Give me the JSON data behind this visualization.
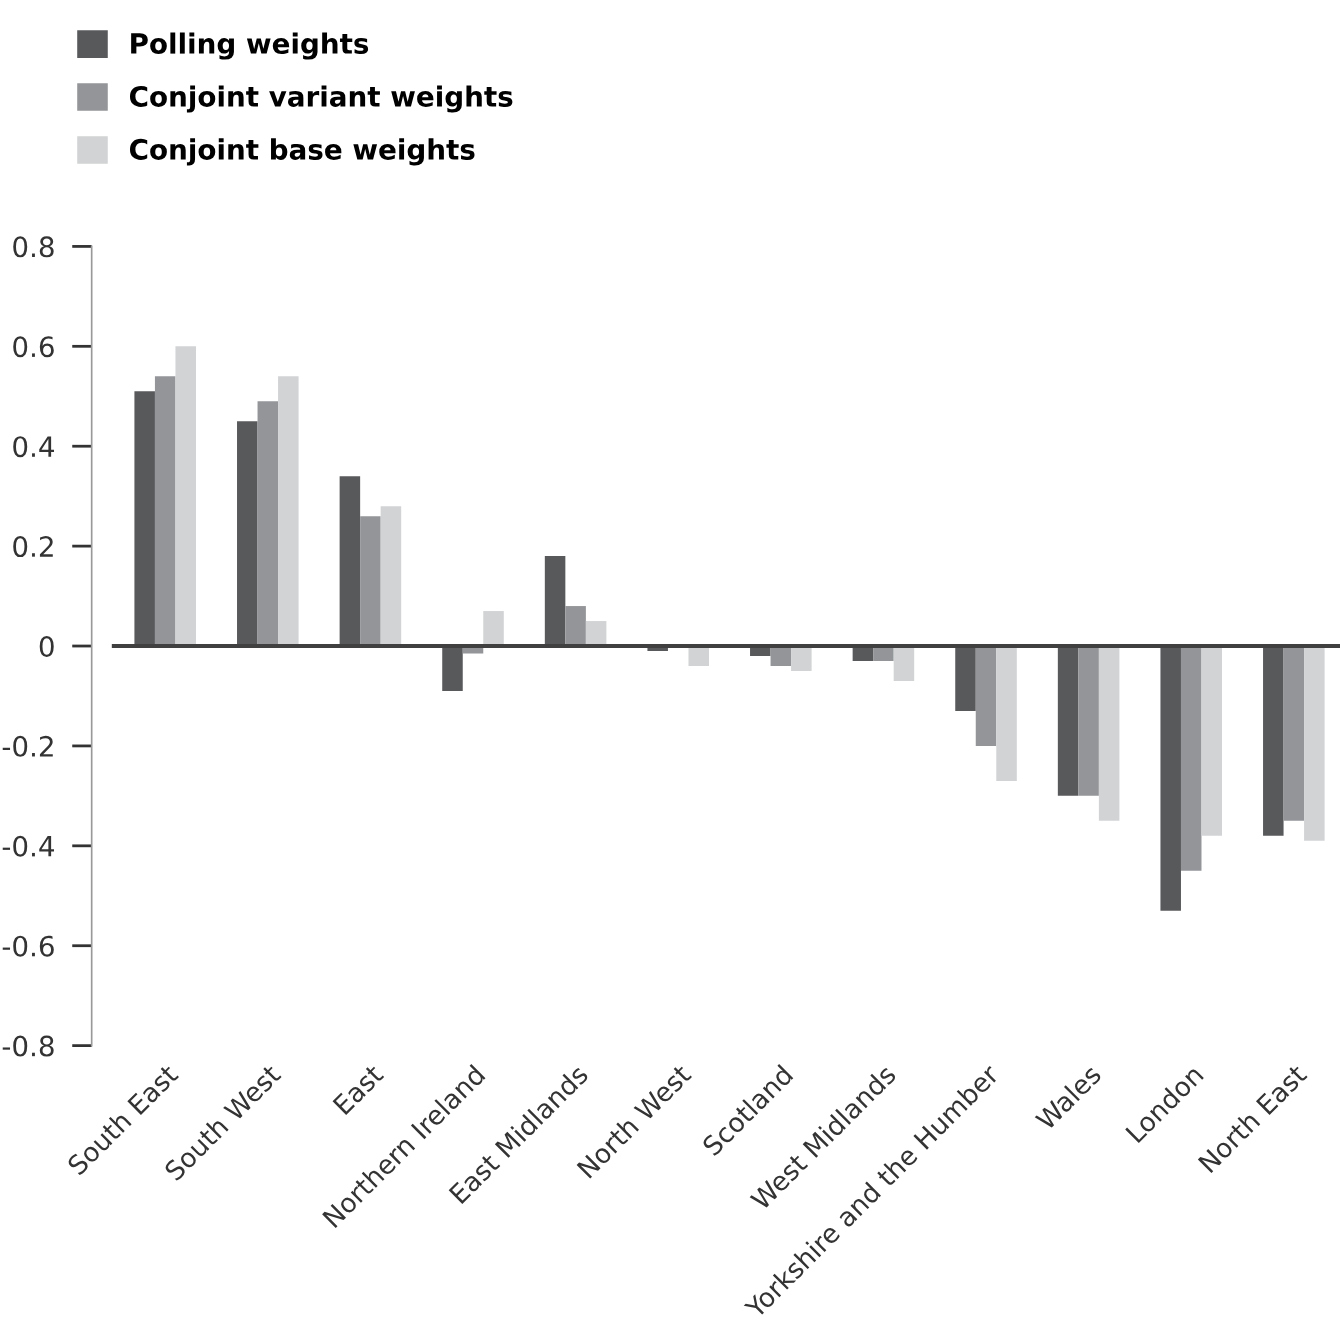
{
  "chart_data": {
    "type": "bar",
    "categories": [
      "South East",
      "South West",
      "East",
      "Northern Ireland",
      "East Midlands",
      "North West",
      "Scotland",
      "West Midlands",
      "Yorkshire and the Humber",
      "Wales",
      "London",
      "North East"
    ],
    "series": [
      {
        "name": "Polling weights",
        "color": "#58595b",
        "values": [
          0.51,
          0.45,
          0.34,
          -0.09,
          0.18,
          -0.01,
          -0.02,
          -0.03,
          -0.13,
          -0.3,
          -0.53,
          -0.38
        ]
      },
      {
        "name": "Conjoint variant weights",
        "color": "#939598",
        "values": [
          0.54,
          0.49,
          0.26,
          -0.015,
          0.08,
          0.0,
          -0.04,
          -0.03,
          -0.2,
          -0.3,
          -0.45,
          -0.35
        ]
      },
      {
        "name": "Conjoint base weights",
        "color": "#d1d3d4",
        "values": [
          0.6,
          0.54,
          0.28,
          0.07,
          0.05,
          -0.04,
          -0.05,
          -0.07,
          -0.27,
          -0.35,
          -0.38,
          -0.39
        ]
      }
    ],
    "ylim": [
      -0.8,
      0.8
    ],
    "yticks": [
      {
        "value": -0.8,
        "label": "-0.8"
      },
      {
        "value": -0.6,
        "label": "-0.6"
      },
      {
        "value": -0.4,
        "label": "-0.4"
      },
      {
        "value": -0.2,
        "label": "-0.2"
      },
      0,
      0.2,
      0.4,
      0.6,
      0.8
    ],
    "legend": "top left"
  }
}
